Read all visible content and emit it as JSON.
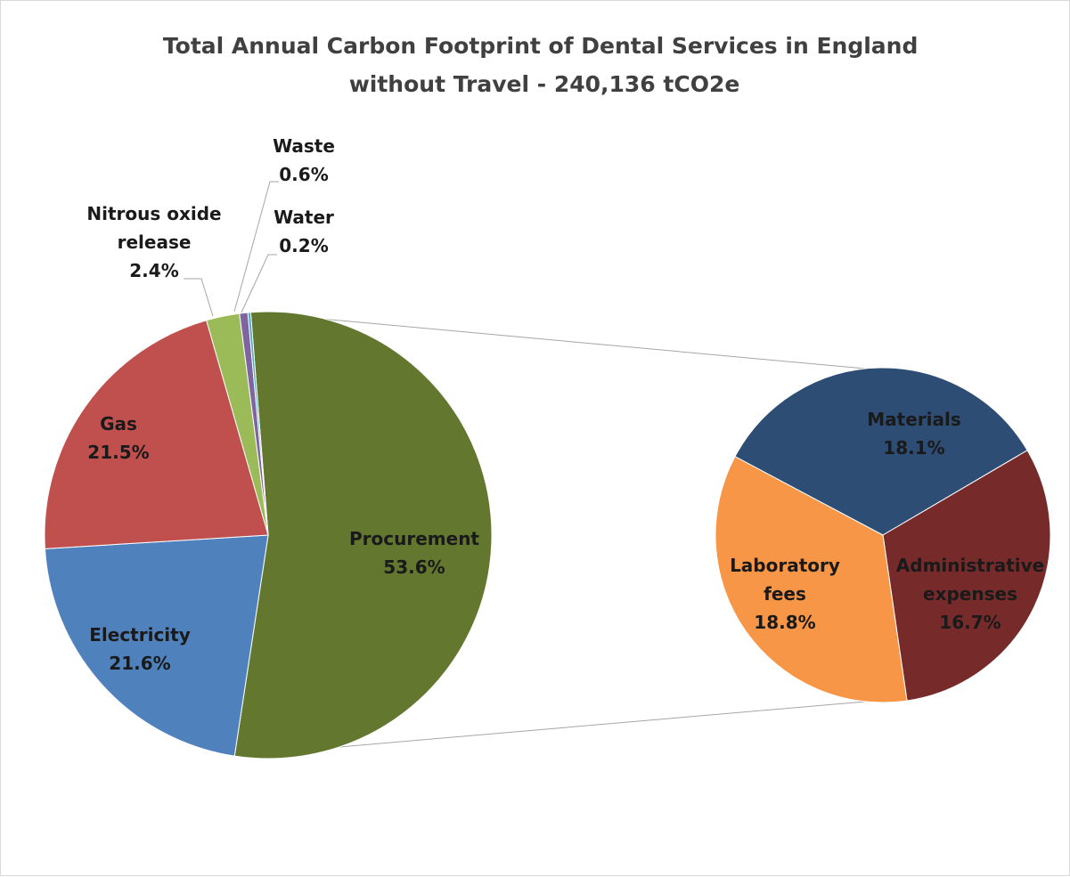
{
  "chart_data": {
    "type": "pie",
    "subtype": "pie-of-pie",
    "title": "Total Annual Carbon Footprint of Dental Services in England without Travel - 240,136 tCO2e",
    "title_lines": [
      "Total Annual Carbon Footprint of Dental Services in England",
      "without Travel - 240,136 tCO2e"
    ],
    "legend": "none",
    "main_pie": {
      "slices": [
        {
          "id": "procurement",
          "label_lines": [
            "Procurement"
          ],
          "value": 53.6,
          "display": "53.6%",
          "color": "#63772F"
        },
        {
          "id": "electricity",
          "label_lines": [
            "Electricity"
          ],
          "value": 21.6,
          "display": "21.6%",
          "color": "#4F81BD"
        },
        {
          "id": "gas",
          "label_lines": [
            "Gas"
          ],
          "value": 21.5,
          "display": "21.5%",
          "color": "#C0504D"
        },
        {
          "id": "nitrous-oxide-release",
          "label_lines": [
            "Nitrous oxide",
            "release"
          ],
          "value": 2.4,
          "display": "2.4%",
          "color": "#9BBB59"
        },
        {
          "id": "waste",
          "label_lines": [
            "Waste"
          ],
          "value": 0.6,
          "display": "0.6%",
          "color": "#8064A2"
        },
        {
          "id": "water",
          "label_lines": [
            "Water"
          ],
          "value": 0.2,
          "display": "0.2%",
          "color": "#4BACC6"
        }
      ]
    },
    "secondary_pie": {
      "parent": "procurement",
      "slices": [
        {
          "id": "materials",
          "label_lines": [
            "Materials"
          ],
          "value": 18.1,
          "display": "18.1%",
          "color": "#2E4D74"
        },
        {
          "id": "administrative-expenses",
          "label_lines": [
            "Administrative",
            "expenses"
          ],
          "value": 16.7,
          "display": "16.7%",
          "color": "#772A2A"
        },
        {
          "id": "laboratory-fees",
          "label_lines": [
            "Laboratory",
            "fees"
          ],
          "value": 18.8,
          "display": "18.8%",
          "color": "#F79646"
        }
      ]
    }
  }
}
